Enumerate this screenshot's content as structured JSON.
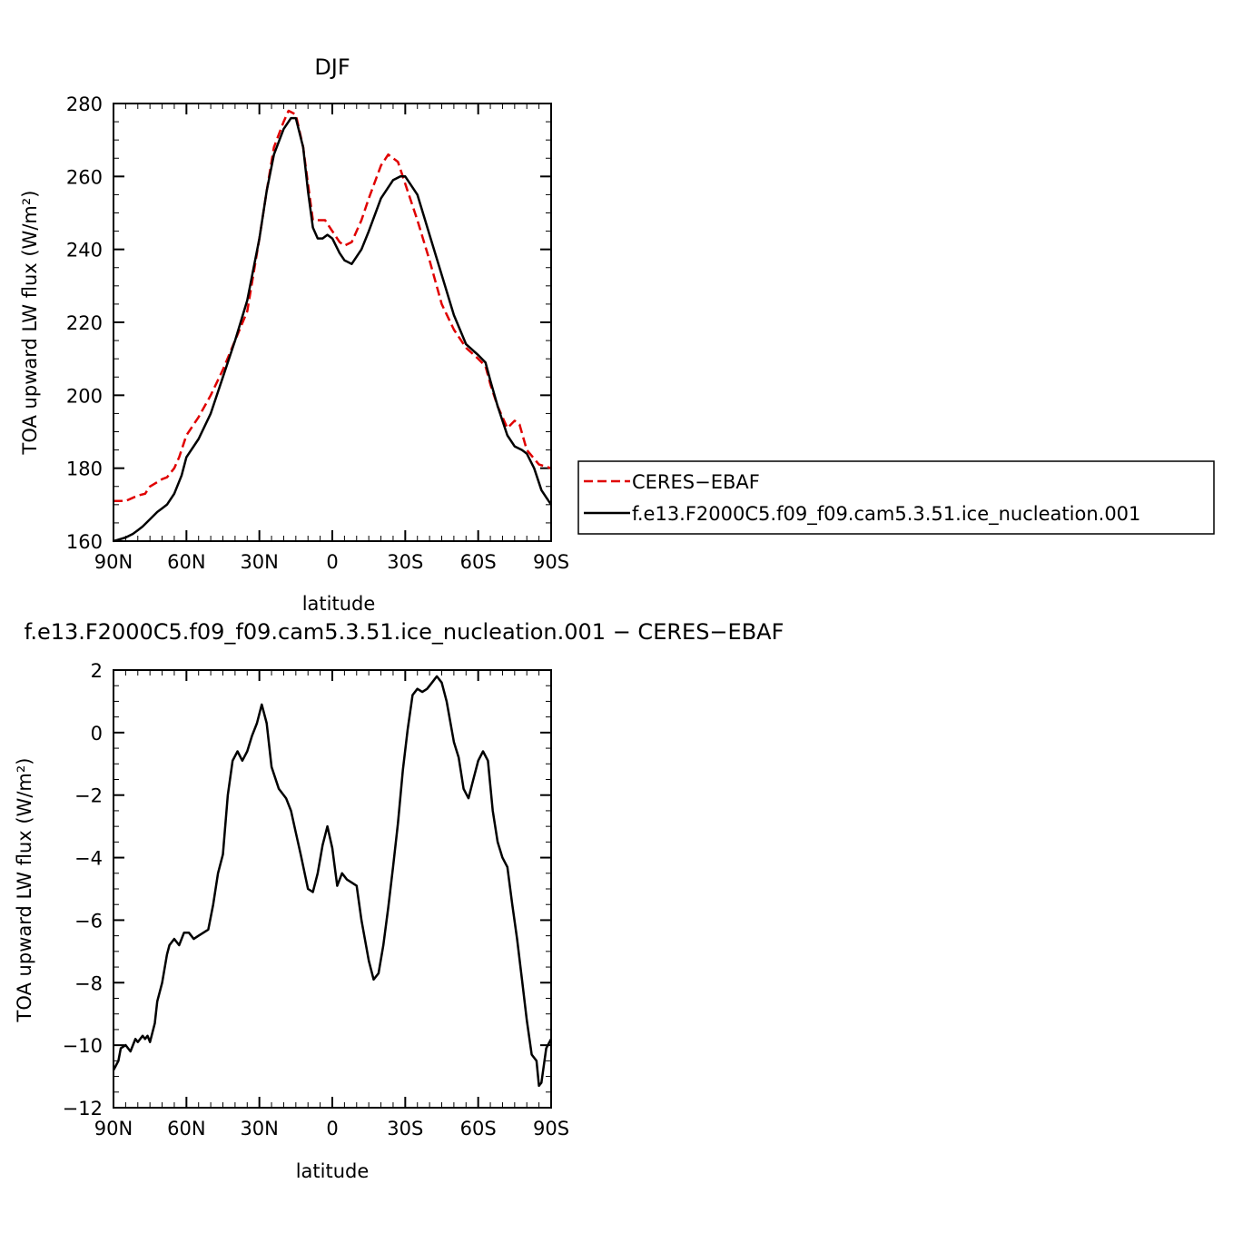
{
  "chart_data": [
    {
      "type": "line",
      "title": "DJF",
      "xlabel": "latitude",
      "ylabel": "TOA upward LW flux (W/m²)",
      "xlim": [
        90,
        -90
      ],
      "ylim": [
        160,
        280
      ],
      "x_ticks": [
        {
          "value": 90,
          "label": "90N"
        },
        {
          "value": 60,
          "label": "60N"
        },
        {
          "value": 30,
          "label": "30N"
        },
        {
          "value": 0,
          "label": "0"
        },
        {
          "value": -30,
          "label": "30S"
        },
        {
          "value": -60,
          "label": "60S"
        },
        {
          "value": -90,
          "label": "90S"
        }
      ],
      "y_ticks": [
        160,
        180,
        200,
        220,
        240,
        260,
        280
      ],
      "legend_position": "right",
      "series": [
        {
          "name": "CERES−EBAF",
          "color": "#e00000",
          "dash": "dashed",
          "points": [
            [
              90,
              171
            ],
            [
              85,
              171
            ],
            [
              80,
              172.5
            ],
            [
              77,
              173
            ],
            [
              75,
              175
            ],
            [
              70,
              177
            ],
            [
              68,
              177.5
            ],
            [
              65,
              180
            ],
            [
              63,
              183
            ],
            [
              60,
              189
            ],
            [
              55,
              194
            ],
            [
              50,
              200
            ],
            [
              45,
              207
            ],
            [
              40,
              215
            ],
            [
              35,
              223
            ],
            [
              30,
              243
            ],
            [
              27,
              256
            ],
            [
              24,
              268
            ],
            [
              20,
              275
            ],
            [
              18,
              278
            ],
            [
              15,
              277
            ],
            [
              12,
              268
            ],
            [
              10,
              258
            ],
            [
              8,
              248
            ],
            [
              5,
              248
            ],
            [
              3,
              248
            ],
            [
              0,
              245
            ],
            [
              -3,
              242
            ],
            [
              -5,
              241
            ],
            [
              -8,
              242
            ],
            [
              -12,
              248
            ],
            [
              -15,
              254
            ],
            [
              -20,
              263
            ],
            [
              -23,
              266
            ],
            [
              -27,
              264
            ],
            [
              -30,
              258
            ],
            [
              -35,
              248
            ],
            [
              -40,
              237
            ],
            [
              -45,
              225
            ],
            [
              -50,
              218
            ],
            [
              -55,
              213
            ],
            [
              -60,
              210
            ],
            [
              -63,
              208
            ],
            [
              -65,
              203
            ],
            [
              -68,
              197
            ],
            [
              -72,
              191
            ],
            [
              -75,
              193
            ],
            [
              -77,
              192
            ],
            [
              -80,
              185
            ],
            [
              -85,
              181
            ],
            [
              -90,
              180
            ]
          ]
        },
        {
          "name": "f.e13.F2000C5.f09_f09.cam5.3.51.ice_nucleation.001",
          "color": "#000000",
          "dash": "solid",
          "points": [
            [
              90,
              160
            ],
            [
              85,
              161
            ],
            [
              82,
              162
            ],
            [
              80,
              163
            ],
            [
              78,
              164
            ],
            [
              75,
              166
            ],
            [
              72,
              168
            ],
            [
              70,
              169
            ],
            [
              68,
              170
            ],
            [
              65,
              173
            ],
            [
              62,
              178
            ],
            [
              60,
              183
            ],
            [
              55,
              188
            ],
            [
              50,
              195
            ],
            [
              45,
              205
            ],
            [
              40,
              215
            ],
            [
              35,
              226
            ],
            [
              30,
              243
            ],
            [
              27,
              256
            ],
            [
              24,
              266
            ],
            [
              20,
              273
            ],
            [
              17,
              276
            ],
            [
              15,
              276
            ],
            [
              12,
              268
            ],
            [
              10,
              256
            ],
            [
              8,
              246
            ],
            [
              6,
              243
            ],
            [
              4,
              243
            ],
            [
              2,
              244
            ],
            [
              0,
              243
            ],
            [
              -3,
              239
            ],
            [
              -5,
              237
            ],
            [
              -8,
              236
            ],
            [
              -12,
              240
            ],
            [
              -15,
              245
            ],
            [
              -20,
              254
            ],
            [
              -25,
              259
            ],
            [
              -28,
              260
            ],
            [
              -30,
              260
            ],
            [
              -35,
              255
            ],
            [
              -40,
              244
            ],
            [
              -45,
              233
            ],
            [
              -50,
              222
            ],
            [
              -55,
              214
            ],
            [
              -60,
              211
            ],
            [
              -63,
              209
            ],
            [
              -65,
              204
            ],
            [
              -68,
              197
            ],
            [
              -72,
              189
            ],
            [
              -75,
              186
            ],
            [
              -78,
              185
            ],
            [
              -80,
              184
            ],
            [
              -83,
              180
            ],
            [
              -86,
              174
            ],
            [
              -88,
              172
            ],
            [
              -90,
              170
            ]
          ]
        }
      ]
    },
    {
      "type": "line",
      "title": "f.e13.F2000C5.f09_f09.cam5.3.51.ice_nucleation.001 − CERES−EBAF",
      "xlabel": "latitude",
      "ylabel": "TOA upward LW flux (W/m²)",
      "xlim": [
        90,
        -90
      ],
      "ylim": [
        -12,
        2
      ],
      "x_ticks": [
        {
          "value": 90,
          "label": "90N"
        },
        {
          "value": 60,
          "label": "60N"
        },
        {
          "value": 30,
          "label": "30N"
        },
        {
          "value": 0,
          "label": "0"
        },
        {
          "value": -30,
          "label": "30S"
        },
        {
          "value": -60,
          "label": "60S"
        },
        {
          "value": -90,
          "label": "90S"
        }
      ],
      "y_ticks": [
        -12,
        -10,
        -8,
        -6,
        -4,
        -2,
        0,
        2
      ],
      "series": [
        {
          "color": "#000000",
          "dash": "solid",
          "points": [
            [
              90,
              -10.8
            ],
            [
              88,
              -10.5
            ],
            [
              87,
              -10.1
            ],
            [
              85,
              -10.0
            ],
            [
              83,
              -10.2
            ],
            [
              81,
              -9.8
            ],
            [
              80,
              -9.9
            ],
            [
              78,
              -9.7
            ],
            [
              77,
              -9.8
            ],
            [
              76,
              -9.7
            ],
            [
              75,
              -9.9
            ],
            [
              73,
              -9.3
            ],
            [
              72,
              -8.6
            ],
            [
              70,
              -8.0
            ],
            [
              68,
              -7.1
            ],
            [
              67,
              -6.8
            ],
            [
              65,
              -6.6
            ],
            [
              63,
              -6.8
            ],
            [
              61,
              -6.4
            ],
            [
              59,
              -6.4
            ],
            [
              57,
              -6.6
            ],
            [
              55,
              -6.5
            ],
            [
              53,
              -6.4
            ],
            [
              51,
              -6.3
            ],
            [
              49,
              -5.5
            ],
            [
              47,
              -4.5
            ],
            [
              45,
              -3.9
            ],
            [
              43,
              -2.0
            ],
            [
              41,
              -0.9
            ],
            [
              39,
              -0.6
            ],
            [
              37,
              -0.9
            ],
            [
              35,
              -0.6
            ],
            [
              33,
              -0.1
            ],
            [
              31,
              0.3
            ],
            [
              29,
              0.9
            ],
            [
              27,
              0.3
            ],
            [
              25,
              -1.1
            ],
            [
              22,
              -1.8
            ],
            [
              19,
              -2.1
            ],
            [
              17,
              -2.5
            ],
            [
              15,
              -3.2
            ],
            [
              13,
              -3.9
            ],
            [
              10,
              -5.0
            ],
            [
              8,
              -5.1
            ],
            [
              6,
              -4.5
            ],
            [
              4,
              -3.6
            ],
            [
              2,
              -3.0
            ],
            [
              0,
              -3.7
            ],
            [
              -2,
              -4.9
            ],
            [
              -4,
              -4.5
            ],
            [
              -6,
              -4.7
            ],
            [
              -8,
              -4.8
            ],
            [
              -10,
              -4.9
            ],
            [
              -12,
              -6.0
            ],
            [
              -15,
              -7.3
            ],
            [
              -17,
              -7.9
            ],
            [
              -19,
              -7.7
            ],
            [
              -21,
              -6.8
            ],
            [
              -23,
              -5.6
            ],
            [
              -25,
              -4.3
            ],
            [
              -27,
              -2.9
            ],
            [
              -29,
              -1.2
            ],
            [
              -31,
              0.1
            ],
            [
              -33,
              1.2
            ],
            [
              -35,
              1.4
            ],
            [
              -37,
              1.3
            ],
            [
              -39,
              1.4
            ],
            [
              -41,
              1.6
            ],
            [
              -43,
              1.8
            ],
            [
              -45,
              1.6
            ],
            [
              -47,
              1.0
            ],
            [
              -50,
              -0.3
            ],
            [
              -52,
              -0.8
            ],
            [
              -54,
              -1.8
            ],
            [
              -56,
              -2.1
            ],
            [
              -58,
              -1.5
            ],
            [
              -60,
              -0.9
            ],
            [
              -62,
              -0.6
            ],
            [
              -64,
              -0.9
            ],
            [
              -66,
              -2.5
            ],
            [
              -68,
              -3.5
            ],
            [
              -70,
              -4.0
            ],
            [
              -72,
              -4.3
            ],
            [
              -74,
              -5.5
            ],
            [
              -76,
              -6.6
            ],
            [
              -78,
              -7.9
            ],
            [
              -80,
              -9.2
            ],
            [
              -82,
              -10.3
            ],
            [
              -84,
              -10.5
            ],
            [
              -85,
              -11.3
            ],
            [
              -86,
              -11.2
            ],
            [
              -88,
              -10.1
            ],
            [
              -90,
              -9.8
            ]
          ]
        }
      ]
    }
  ]
}
